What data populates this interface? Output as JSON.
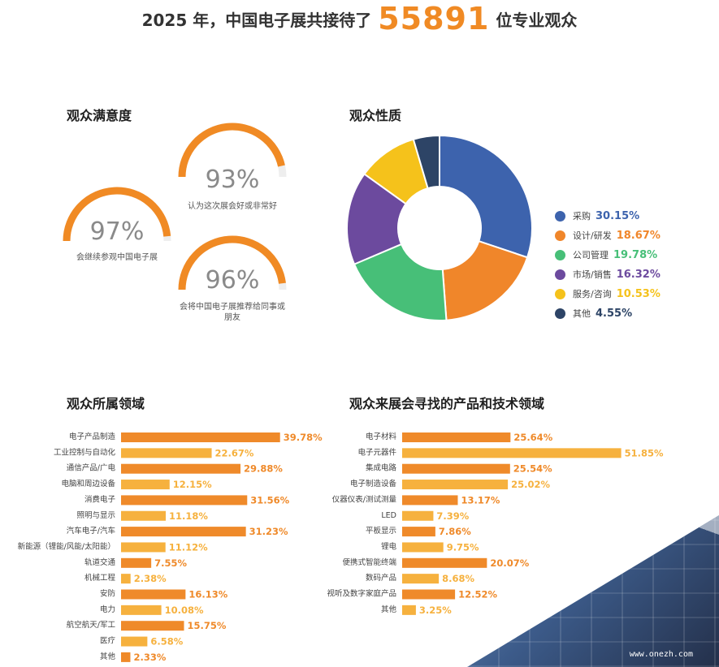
{
  "header": {
    "prefix": "2025 年，中国电子展共接待了",
    "number": "55891",
    "suffix": "位专业观众"
  },
  "satisfaction": {
    "title": "观众满意度",
    "gauges": [
      {
        "value": "93%",
        "caption": "认为这次展会好或非常好"
      },
      {
        "value": "97%",
        "caption": "会继续参观中国电子展"
      },
      {
        "value": "96%",
        "caption": "会将中国电子展推荐给同事或朋友"
      }
    ]
  },
  "nature": {
    "title": "观众性质",
    "chart_data": {
      "type": "pie",
      "donut": true,
      "labels": [
        "采购",
        "设计/研发",
        "公司管理",
        "市场/销售",
        "服务/咨询",
        "其他"
      ],
      "values": [
        30.15,
        18.67,
        19.78,
        16.32,
        10.53,
        4.55
      ],
      "value_labels": [
        "30.15%",
        "18.67%",
        "19.78%",
        "16.32%",
        "10.53%",
        "4.55%"
      ],
      "colors": [
        "#3d63ad",
        "#f0862a",
        "#47bf78",
        "#6c4a9e",
        "#f5c21b",
        "#2d4466"
      ],
      "legend": "right"
    }
  },
  "field": {
    "title": "观众所属领域",
    "chart_data": {
      "type": "bar",
      "orientation": "horizontal",
      "categories": [
        "电子产品制造",
        "工业控制与自动化",
        "通信产品/广电",
        "电脑和周边设备",
        "消费电子",
        "照明与显示",
        "汽车电子/汽车",
        "新能源（锂能/风能/太阳能）",
        "轨道交通",
        "机械工程",
        "安防",
        "电力",
        "航空航天/军工",
        "医疗",
        "其他"
      ],
      "values": [
        39.78,
        22.67,
        29.88,
        12.15,
        31.56,
        11.18,
        31.23,
        11.12,
        7.55,
        2.38,
        16.13,
        10.08,
        15.75,
        6.58,
        2.33
      ],
      "value_labels": [
        "39.78%",
        "22.67%",
        "29.88%",
        "12.15%",
        "31.56%",
        "11.18%",
        "31.23%",
        "11.12%",
        "7.55%",
        "2.38%",
        "16.13%",
        "10.08%",
        "15.75%",
        "6.58%",
        "2.33%"
      ]
    }
  },
  "products": {
    "title": "观众来展会寻找的产品和技术领域",
    "chart_data": {
      "type": "bar",
      "orientation": "horizontal",
      "categories": [
        "电子材料",
        "电子元器件",
        "集成电路",
        "电子制造设备",
        "仪器仪表/测试测量",
        "LED",
        "平板显示",
        "锂电",
        "便携式智能终端",
        "数码产品",
        "视听及数字家庭产品",
        "其他"
      ],
      "values": [
        25.64,
        51.85,
        25.54,
        25.02,
        13.17,
        7.39,
        7.86,
        9.75,
        20.07,
        8.68,
        12.52,
        3.25
      ],
      "value_labels": [
        "25.64%",
        "51.85%",
        "25.54%",
        "25.02%",
        "13.17%",
        "7.39%",
        "7.86%",
        "9.75%",
        "20.07%",
        "8.68%",
        "12.52%",
        "3.25%"
      ]
    }
  },
  "watermark": "www.onezh.com",
  "colors": {
    "accent": "#f08a24",
    "bar_dark": "#ef8a2a",
    "bar_light": "#f6b13e",
    "gauge_track": "#eeeeee"
  }
}
